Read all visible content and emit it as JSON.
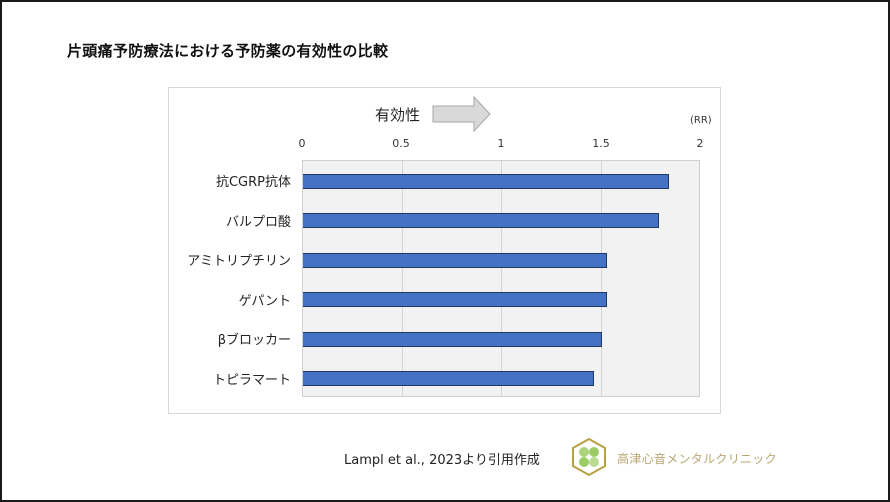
{
  "slide": {
    "title": "片頭痛予防療法における予防薬の有効性の比較",
    "citation": "Lampl et al., 2023より引用作成",
    "clinic_name": "高津心音メンタルクリニック",
    "logo_icon": "hexagon-clover-logo"
  },
  "chart": {
    "arrow_label": "有効性",
    "unit_label": "(RR)",
    "ticks": [
      "0",
      "0.5",
      "1",
      "1.5",
      "2"
    ],
    "bar_color": "#4472c4",
    "bar_border_color": "#1f3864",
    "plot_bg": "#f2f2f2"
  },
  "chart_data": {
    "type": "bar",
    "orientation": "horizontal",
    "title": "片頭痛予防療法における予防薬の有効性の比較",
    "categories": [
      "抗CGRP抗体",
      "バルプロ酸",
      "アミトリプチリン",
      "ゲパント",
      "βブロッカー",
      "トピラマート"
    ],
    "values": [
      1.84,
      1.79,
      1.53,
      1.53,
      1.5,
      1.46
    ],
    "xlabel": "有効性 (RR)",
    "ylabel": "",
    "xlim": [
      0,
      2
    ],
    "xticks": [
      0,
      0.5,
      1,
      1.5,
      2
    ],
    "grid": true,
    "axis_position": "top",
    "legend": null,
    "annotation": "有効性 →",
    "source": "Lampl et al., 2023より引用作成"
  }
}
